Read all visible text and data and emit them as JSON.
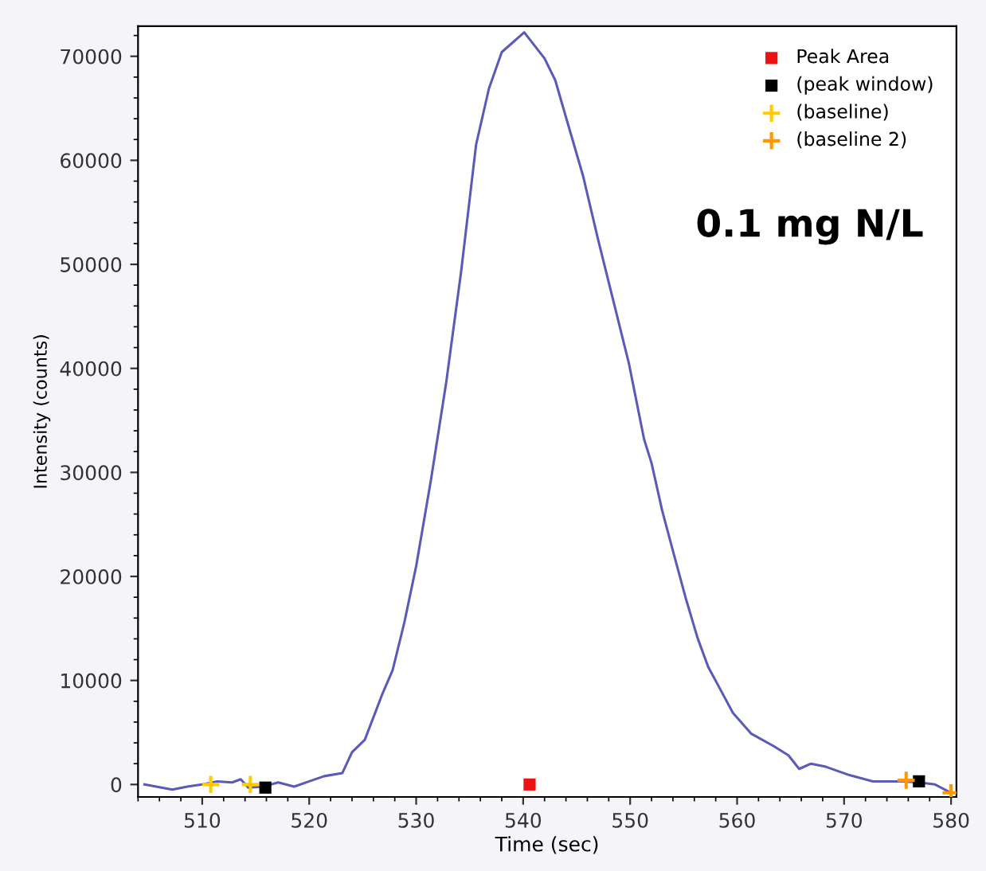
{
  "chart_data": {
    "type": "line",
    "xlabel": "Time (sec)",
    "ylabel": "Intensity (counts)",
    "annotations": [
      "0.1 mg N/L"
    ],
    "xlim": [
      504,
      580.5
    ],
    "ylim": [
      -1200,
      72900
    ],
    "xticks": [
      510,
      520,
      530,
      540,
      550,
      560,
      570,
      580
    ],
    "yticks": [
      0,
      10000,
      20000,
      30000,
      40000,
      50000,
      60000,
      70000
    ],
    "grid": false,
    "legend": "top right",
    "series": [
      {
        "color": "#5a5ab8",
        "x": [
          504.6,
          505.7,
          507.2,
          508.6,
          510,
          511.4,
          512.8,
          513.6,
          514.3,
          515.7,
          517.1,
          518.6,
          520,
          521.4,
          523.1,
          524,
          525.2,
          526.8,
          527.8,
          528.9,
          530,
          531.4,
          532.8,
          534.2,
          535.6,
          536.8,
          538,
          540.1,
          542,
          543,
          544.1,
          545.6,
          547,
          548.5,
          549.9,
          551.3,
          552,
          553,
          554.2,
          555.2,
          556.3,
          557.3,
          558.4,
          559.6,
          561.3,
          563.4,
          564.8,
          565.8,
          566.9,
          568.3,
          570.5,
          572.7,
          575.5,
          577,
          578.5,
          580
        ],
        "values": [
          0,
          -200,
          -500,
          -200,
          0,
          300,
          200,
          500,
          -300,
          -200,
          200,
          -200,
          300,
          800,
          1100,
          3100,
          4300,
          8600,
          11000,
          15600,
          21000,
          29400,
          38600,
          49300,
          61500,
          66900,
          70400,
          72300,
          69800,
          67700,
          63800,
          58500,
          52400,
          46200,
          40400,
          33200,
          30900,
          26300,
          21700,
          17900,
          14100,
          11300,
          9200,
          6900,
          4900,
          3700,
          2800,
          1500,
          2000,
          1700,
          900,
          300,
          300,
          200,
          0,
          -800
        ]
      },
      {
        "type": "scatter",
        "name": "Peak Area",
        "color": "#ee1111",
        "marker": "square",
        "x": [
          540.6
        ],
        "values": [
          0
        ]
      },
      {
        "type": "scatter",
        "name": "(peak window)",
        "color": "#000000",
        "marker": "square",
        "x": [
          515.9,
          577
        ],
        "values": [
          -300,
          300
        ]
      },
      {
        "type": "scatter",
        "name": "(baseline)",
        "color": "#ffcc00",
        "marker": "cross",
        "x": [
          510.8,
          514.5
        ],
        "values": [
          0,
          0
        ]
      },
      {
        "type": "scatter",
        "name": "(baseline 2)",
        "color": "#ff9900",
        "marker": "cross",
        "x": [
          575.8,
          580
        ],
        "values": [
          400,
          -800
        ]
      }
    ]
  }
}
